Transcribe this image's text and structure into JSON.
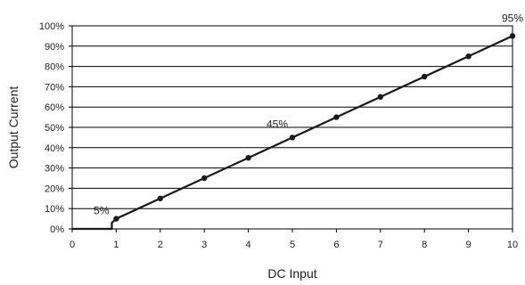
{
  "chart_data": {
    "type": "line",
    "title": "",
    "xlabel": "DC Input",
    "ylabel": "Output Current",
    "xlim": [
      0,
      10
    ],
    "ylim": [
      0,
      100
    ],
    "x_ticks": [
      "0",
      "1",
      "2",
      "3",
      "4",
      "5",
      "6",
      "7",
      "8",
      "9",
      "10"
    ],
    "y_ticks": [
      "0%",
      "10%",
      "20%",
      "30%",
      "40%",
      "50%",
      "60%",
      "70%",
      "80%",
      "90%",
      "100%"
    ],
    "grid": "horizontal",
    "legend": "none",
    "series": [
      {
        "color": "#1a1a1a",
        "line": [
          [
            0,
            0
          ],
          [
            0.9,
            0
          ],
          [
            0.9,
            3
          ],
          [
            1,
            5
          ],
          [
            10,
            95
          ]
        ],
        "markers_x": [
          1,
          2,
          3,
          4,
          5,
          6,
          7,
          8,
          9,
          10
        ],
        "markers_y": [
          5,
          15,
          25,
          35,
          45,
          55,
          65,
          75,
          85,
          95
        ]
      }
    ],
    "annotations": [
      {
        "text": "5%",
        "x": 1,
        "y": 5
      },
      {
        "text": "45%",
        "x": 5,
        "y": 45
      },
      {
        "text": "95%",
        "x": 10,
        "y": 95
      }
    ]
  }
}
